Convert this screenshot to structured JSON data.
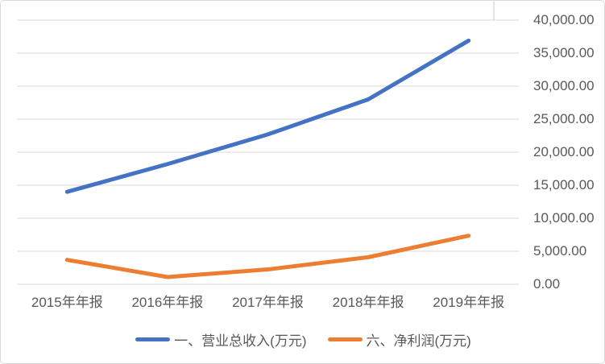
{
  "chart_data": {
    "type": "line",
    "categories": [
      "2015年年报",
      "2016年年报",
      "2017年年报",
      "2018年年报",
      "2019年年报"
    ],
    "series": [
      {
        "name": "一、营业总收入(万元)",
        "color": "#4472C4",
        "values": [
          14000,
          18200,
          22700,
          28000,
          36900
        ]
      },
      {
        "name": "六、净利润(万元)",
        "color": "#ED7D31",
        "values": [
          3700,
          1100,
          2250,
          4100,
          7350
        ]
      }
    ],
    "ylim": [
      0,
      40000
    ],
    "y_tick_step": 5000,
    "y_tick_labels": [
      "0.00",
      "5,000.00",
      "10,000.00",
      "15,000.00",
      "20,000.00",
      "25,000.00",
      "30,000.00",
      "35,000.00",
      "40,000.00"
    ],
    "grid": true,
    "legend_position": "bottom",
    "axis_side": "right"
  },
  "colors": {
    "gridline": "#D9D9D9",
    "axis_text": "#595959",
    "widget_border": "#D9D9D9",
    "background": "#FFFFFF",
    "series_blue": "#4472C4",
    "series_orange": "#ED7D31"
  }
}
